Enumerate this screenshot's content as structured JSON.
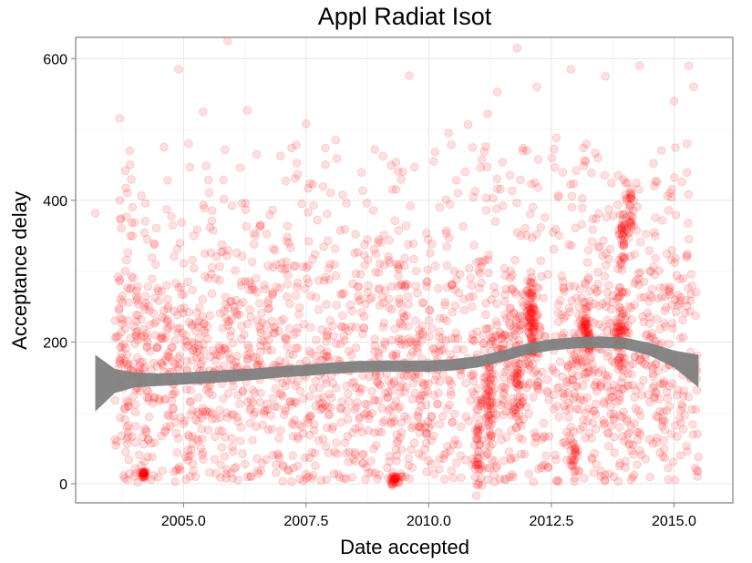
{
  "chart_data": {
    "type": "scatter",
    "title": "Appl Radiat Isot",
    "xlabel": "Date accepted",
    "ylabel": "Acceptance delay",
    "xlim": [
      2002.8,
      2016.2
    ],
    "ylim": [
      -27,
      630
    ],
    "x_ticks": [
      2005.0,
      2007.5,
      2010.0,
      2012.5,
      2015.0
    ],
    "x_tick_labels": [
      "2005.0",
      "2007.5",
      "2010.0",
      "2012.5",
      "2015.0"
    ],
    "y_ticks": [
      0,
      200,
      400,
      600
    ],
    "y_tick_labels": [
      "0",
      "200",
      "400",
      "600"
    ],
    "grid": true,
    "point_color": "#ff0000",
    "point_alpha": 0.12,
    "smooth_color": "#808080",
    "points_sample": [
      [
        2003.2,
        382
      ],
      [
        2003.7,
        400
      ],
      [
        2003.9,
        470
      ],
      [
        2004.2,
        14
      ],
      [
        2004.6,
        475
      ],
      [
        2004.9,
        585
      ],
      [
        2005.1,
        480
      ],
      [
        2005.4,
        525
      ],
      [
        2005.9,
        625
      ],
      [
        2006.3,
        527
      ],
      [
        2006.6,
        632
      ],
      [
        2007.3,
        478
      ],
      [
        2007.5,
        508
      ],
      [
        2008.1,
        485
      ],
      [
        2008.9,
        472
      ],
      [
        2009.3,
        5
      ],
      [
        2009.6,
        576
      ],
      [
        2010.1,
        455
      ],
      [
        2010.4,
        495
      ],
      [
        2010.8,
        507
      ],
      [
        2011.2,
        522
      ],
      [
        2011.4,
        553
      ],
      [
        2011.8,
        615
      ],
      [
        2012.0,
        470
      ],
      [
        2012.2,
        560
      ],
      [
        2012.6,
        488
      ],
      [
        2012.9,
        585
      ],
      [
        2013.2,
        455
      ],
      [
        2013.6,
        575
      ],
      [
        2013.9,
        380
      ],
      [
        2014.1,
        410
      ],
      [
        2014.3,
        590
      ],
      [
        2014.6,
        420
      ],
      [
        2015.0,
        540
      ],
      [
        2015.3,
        590
      ],
      [
        2015.4,
        560
      ]
    ],
    "smooth_fit": [
      {
        "x": 2003.2,
        "y": 142,
        "lower": 102,
        "upper": 182
      },
      {
        "x": 2003.6,
        "y": 145,
        "lower": 128,
        "upper": 162
      },
      {
        "x": 2004.0,
        "y": 146,
        "lower": 136,
        "upper": 157
      },
      {
        "x": 2004.5,
        "y": 147,
        "lower": 138,
        "upper": 156
      },
      {
        "x": 2005.0,
        "y": 148,
        "lower": 140,
        "upper": 157
      },
      {
        "x": 2005.5,
        "y": 150,
        "lower": 142,
        "upper": 159
      },
      {
        "x": 2006.0,
        "y": 152,
        "lower": 144,
        "upper": 161
      },
      {
        "x": 2006.5,
        "y": 155,
        "lower": 147,
        "upper": 163
      },
      {
        "x": 2007.0,
        "y": 158,
        "lower": 150,
        "upper": 166
      },
      {
        "x": 2007.5,
        "y": 160,
        "lower": 152,
        "upper": 168
      },
      {
        "x": 2008.0,
        "y": 163,
        "lower": 155,
        "upper": 171
      },
      {
        "x": 2008.5,
        "y": 165,
        "lower": 157,
        "upper": 173
      },
      {
        "x": 2009.0,
        "y": 166,
        "lower": 158,
        "upper": 174
      },
      {
        "x": 2009.5,
        "y": 166,
        "lower": 158,
        "upper": 174
      },
      {
        "x": 2010.0,
        "y": 166,
        "lower": 158,
        "upper": 174
      },
      {
        "x": 2010.5,
        "y": 168,
        "lower": 160,
        "upper": 176
      },
      {
        "x": 2011.0,
        "y": 172,
        "lower": 164,
        "upper": 180
      },
      {
        "x": 2011.5,
        "y": 180,
        "lower": 172,
        "upper": 188
      },
      {
        "x": 2012.0,
        "y": 190,
        "lower": 182,
        "upper": 198
      },
      {
        "x": 2012.5,
        "y": 196,
        "lower": 188,
        "upper": 204
      },
      {
        "x": 2013.0,
        "y": 199,
        "lower": 191,
        "upper": 207
      },
      {
        "x": 2013.5,
        "y": 200,
        "lower": 192,
        "upper": 208
      },
      {
        "x": 2014.0,
        "y": 198,
        "lower": 190,
        "upper": 206
      },
      {
        "x": 2014.5,
        "y": 190,
        "lower": 181,
        "upper": 199
      },
      {
        "x": 2015.0,
        "y": 176,
        "lower": 164,
        "upper": 188
      },
      {
        "x": 2015.5,
        "y": 160,
        "lower": 136,
        "upper": 182
      }
    ]
  }
}
